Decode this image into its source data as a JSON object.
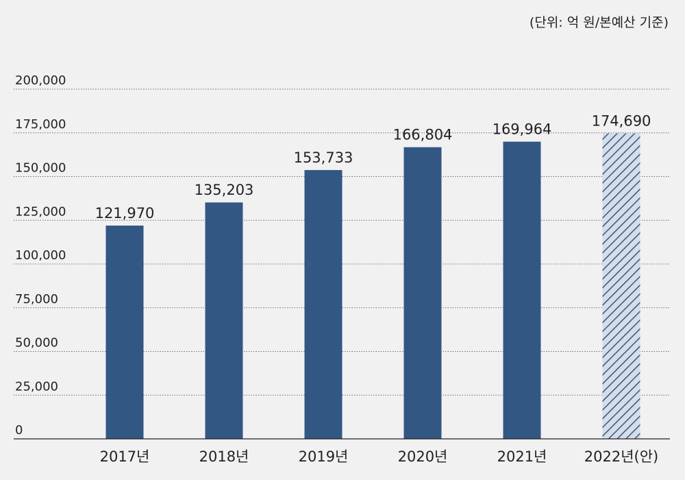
{
  "unit_note": "(단위: 억 원/본예산 기준)",
  "colors": {
    "background": "#f1f1f2",
    "bar": "#335783",
    "projected_hatch": "#335783",
    "projected_fill": "#d5dde8",
    "grid": "#6d6e71",
    "axis": "#231f20"
  },
  "chart_data": {
    "type": "bar",
    "title": "",
    "xlabel": "",
    "ylabel": "",
    "ylim": [
      0,
      200000
    ],
    "yticks": [
      0,
      25000,
      50000,
      75000,
      100000,
      125000,
      150000,
      175000,
      200000
    ],
    "ytick_labels": [
      "0",
      "25,000",
      "50,000",
      "75,000",
      "100,000",
      "125,000",
      "150,000",
      "175,000",
      "200,000"
    ],
    "grid": true,
    "categories": [
      "2017년",
      "2018년",
      "2019년",
      "2020년",
      "2021년",
      "2022년(안)"
    ],
    "values": [
      121970,
      135203,
      153733,
      166804,
      169964,
      174690
    ],
    "value_labels": [
      "121,970",
      "135,203",
      "153,733",
      "166,804",
      "169,964",
      "174,690"
    ],
    "projected": [
      false,
      false,
      false,
      false,
      false,
      true
    ]
  }
}
